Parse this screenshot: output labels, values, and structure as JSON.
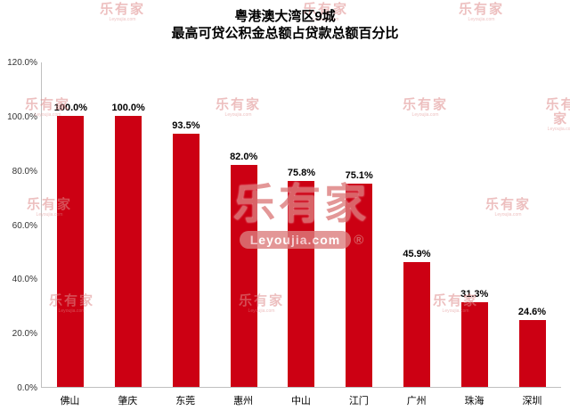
{
  "title": {
    "line1": "粤港澳大湾区9城",
    "line2": "最高可贷公积金总额占贷款总额百分比"
  },
  "watermark": {
    "brand": "乐有家",
    "domain": "Leyoujia.com",
    "registered": "®"
  },
  "colors": {
    "bar": "#cc0013",
    "axis_line": "#bfbfbf",
    "value_label": "#000000",
    "watermark": "#dd7e7e"
  },
  "chart_data": {
    "type": "bar",
    "title": "粤港澳大湾区9城 最高可贷公积金总额占贷款总额百分比",
    "categories": [
      "佛山",
      "肇庆",
      "东莞",
      "惠州",
      "中山",
      "江门",
      "广州",
      "珠海",
      "深圳"
    ],
    "values": [
      100.0,
      100.0,
      93.5,
      82.0,
      75.8,
      75.1,
      45.9,
      31.3,
      24.6
    ],
    "value_labels": [
      "100.0%",
      "100.0%",
      "93.5%",
      "82.0%",
      "75.8%",
      "75.1%",
      "45.9%",
      "31.3%",
      "24.6%"
    ],
    "y_ticks": [
      "120.0%",
      "100.0%",
      "80.0%",
      "60.0%",
      "40.0%",
      "20.0%",
      "0.0%"
    ],
    "xlabel": "",
    "ylabel": "",
    "ylim": [
      0,
      120
    ],
    "grid": false,
    "legend": "none",
    "bar_color": "#cc0013"
  }
}
